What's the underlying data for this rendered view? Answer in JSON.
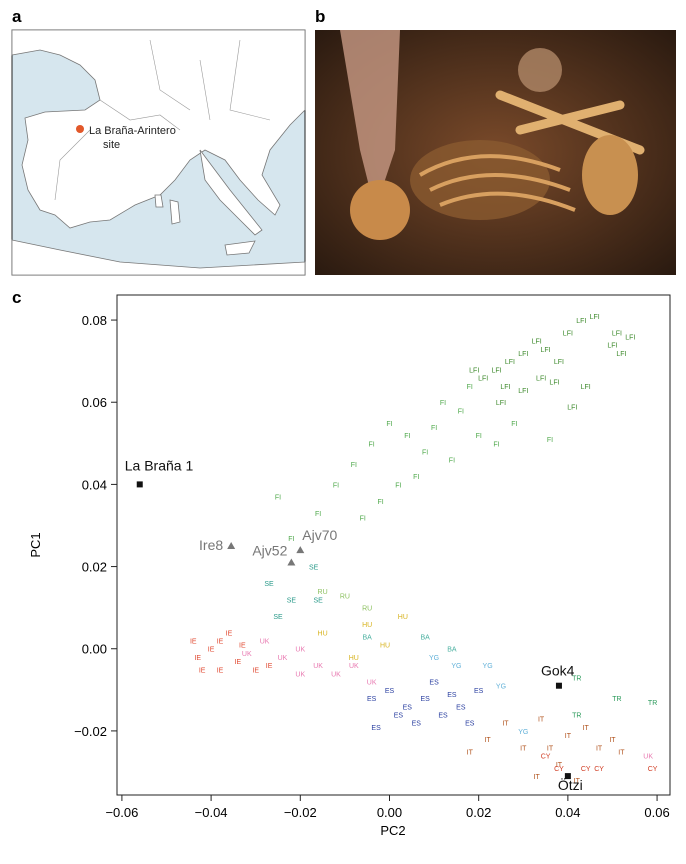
{
  "panels": {
    "a": {
      "label": "a",
      "site_label": [
        "La Braña-Arintero",
        "site"
      ]
    },
    "b": {
      "label": "b"
    }
  },
  "chart_data": {
    "type": "scatter",
    "panel_label": "c",
    "xlabel": "PC2",
    "ylabel": "PC1",
    "xlim": [
      -0.0611,
      0.0629
    ],
    "ylim": [
      -0.0356,
      0.0861
    ],
    "xticks": [
      {
        "value": -0.06,
        "label": "−0.06"
      },
      {
        "value": -0.04,
        "label": "−0.04"
      },
      {
        "value": -0.02,
        "label": "−0.02"
      },
      {
        "value": 0,
        "label": "0.00"
      },
      {
        "value": 0.02,
        "label": "0.02"
      },
      {
        "value": 0.04,
        "label": "0.04"
      },
      {
        "value": 0.06,
        "label": "0.06"
      }
    ],
    "yticks": [
      {
        "value": -0.02,
        "label": "−0.02"
      },
      {
        "value": 0,
        "label": "0.00"
      },
      {
        "value": 0.02,
        "label": "0.02"
      },
      {
        "value": 0.04,
        "label": "0.04"
      },
      {
        "value": 0.06,
        "label": "0.06"
      },
      {
        "value": 0.08,
        "label": "0.08"
      }
    ],
    "series": [
      {
        "name": "LFI",
        "color": "#3d8a2c",
        "x": [
          0.021,
          0.024,
          0.027,
          0.03,
          0.033,
          0.035,
          0.038,
          0.04,
          0.043,
          0.046,
          0.05,
          0.052,
          0.054,
          0.037,
          0.026,
          0.03,
          0.034,
          0.044,
          0.041,
          0.051,
          0.019,
          0.025
        ],
        "y": [
          0.066,
          0.068,
          0.07,
          0.072,
          0.075,
          0.073,
          0.07,
          0.077,
          0.08,
          0.081,
          0.074,
          0.072,
          0.076,
          0.065,
          0.064,
          0.063,
          0.066,
          0.064,
          0.059,
          0.077,
          0.068,
          0.06
        ]
      },
      {
        "name": "FI",
        "color": "#4ea84a",
        "x": [
          -0.025,
          -0.022,
          -0.012,
          -0.008,
          -0.004,
          0.0,
          0.004,
          0.008,
          0.012,
          0.016,
          0.02,
          0.024,
          0.014,
          0.006,
          -0.002,
          -0.006,
          0.01,
          0.018,
          -0.016,
          0.002,
          0.028,
          0.036
        ],
        "y": [
          0.037,
          0.027,
          0.04,
          0.045,
          0.05,
          0.055,
          0.052,
          0.048,
          0.06,
          0.058,
          0.052,
          0.05,
          0.046,
          0.042,
          0.036,
          0.032,
          0.054,
          0.064,
          0.033,
          0.04,
          0.055,
          0.051
        ]
      },
      {
        "name": "TR",
        "color": "#2a9a5a",
        "x": [
          0.042,
          0.051,
          0.059,
          0.042
        ],
        "y": [
          -0.007,
          -0.012,
          -0.013,
          -0.016
        ]
      },
      {
        "name": "SE",
        "color": "#2a9a8a",
        "x": [
          -0.027,
          -0.022,
          -0.017,
          -0.016,
          -0.025
        ],
        "y": [
          0.016,
          0.012,
          0.02,
          0.012,
          0.008
        ]
      },
      {
        "name": "RU",
        "color": "#8cc060",
        "x": [
          -0.01,
          -0.015,
          -0.005
        ],
        "y": [
          0.013,
          0.014,
          0.01
        ]
      },
      {
        "name": "HU",
        "color": "#d8b420",
        "x": [
          -0.005,
          0.003,
          -0.015,
          -0.001,
          -0.008
        ],
        "y": [
          0.006,
          0.008,
          0.004,
          0.001,
          -0.002
        ]
      },
      {
        "name": "IE",
        "color": "#e04a32",
        "x": [
          -0.04,
          -0.043,
          -0.044,
          -0.038,
          -0.042,
          -0.036,
          -0.034,
          -0.03,
          -0.033,
          -0.027,
          -0.038
        ],
        "y": [
          0.0,
          -0.002,
          0.002,
          -0.005,
          -0.005,
          0.004,
          -0.003,
          -0.005,
          0.001,
          -0.004,
          0.002
        ]
      },
      {
        "name": "UK",
        "color": "#e878b0",
        "x": [
          -0.032,
          -0.028,
          -0.024,
          -0.02,
          -0.016,
          -0.012,
          -0.008,
          -0.004,
          -0.02,
          0.058
        ],
        "y": [
          -0.001,
          0.002,
          -0.002,
          0.0,
          -0.004,
          -0.006,
          -0.004,
          -0.008,
          -0.006,
          -0.026
        ]
      },
      {
        "name": "BA",
        "color": "#4ab0a0",
        "x": [
          -0.005,
          0.008,
          0.014
        ],
        "y": [
          0.003,
          0.003,
          0.0
        ]
      },
      {
        "name": "ES",
        "color": "#2a3fa0",
        "x": [
          -0.004,
          0.0,
          0.004,
          0.008,
          0.012,
          0.016,
          0.006,
          0.01,
          0.002,
          -0.003,
          0.02,
          0.014,
          0.018
        ],
        "y": [
          -0.012,
          -0.01,
          -0.014,
          -0.012,
          -0.016,
          -0.014,
          -0.018,
          -0.008,
          -0.016,
          -0.019,
          -0.01,
          -0.011,
          -0.018
        ]
      },
      {
        "name": "YG",
        "color": "#60b0d8",
        "x": [
          0.01,
          0.015,
          0.022,
          0.025,
          0.03
        ],
        "y": [
          -0.002,
          -0.004,
          -0.004,
          -0.009,
          -0.02
        ]
      },
      {
        "name": "IT",
        "color": "#b0501a",
        "x": [
          0.018,
          0.022,
          0.026,
          0.03,
          0.034,
          0.036,
          0.04,
          0.044,
          0.047,
          0.05,
          0.033,
          0.038,
          0.042,
          0.052
        ],
        "y": [
          -0.025,
          -0.022,
          -0.018,
          -0.024,
          -0.017,
          -0.024,
          -0.021,
          -0.019,
          -0.024,
          -0.022,
          -0.031,
          -0.028,
          -0.032,
          -0.025
        ]
      },
      {
        "name": "CY",
        "color": "#d03a20",
        "x": [
          0.038,
          0.044,
          0.047,
          0.059,
          0.035
        ],
        "y": [
          -0.029,
          -0.029,
          -0.029,
          -0.029,
          -0.026
        ]
      }
    ],
    "samples": [
      {
        "name": "La Braña 1",
        "x": -0.056,
        "y": 0.04,
        "marker": "square",
        "color": "#111111"
      },
      {
        "name": "Ire8",
        "x": -0.0355,
        "y": 0.025,
        "marker": "triangle",
        "color": "#777777"
      },
      {
        "name": "Ajv52",
        "x": -0.022,
        "y": 0.021,
        "marker": "triangle",
        "color": "#777777"
      },
      {
        "name": "Ajv70",
        "x": -0.02,
        "y": 0.024,
        "marker": "triangle",
        "color": "#777777"
      },
      {
        "name": "Gok4",
        "x": 0.038,
        "y": -0.009,
        "marker": "square",
        "color": "#111111"
      },
      {
        "name": "Ötzi",
        "x": 0.04,
        "y": -0.031,
        "marker": "square",
        "color": "#111111"
      }
    ]
  }
}
